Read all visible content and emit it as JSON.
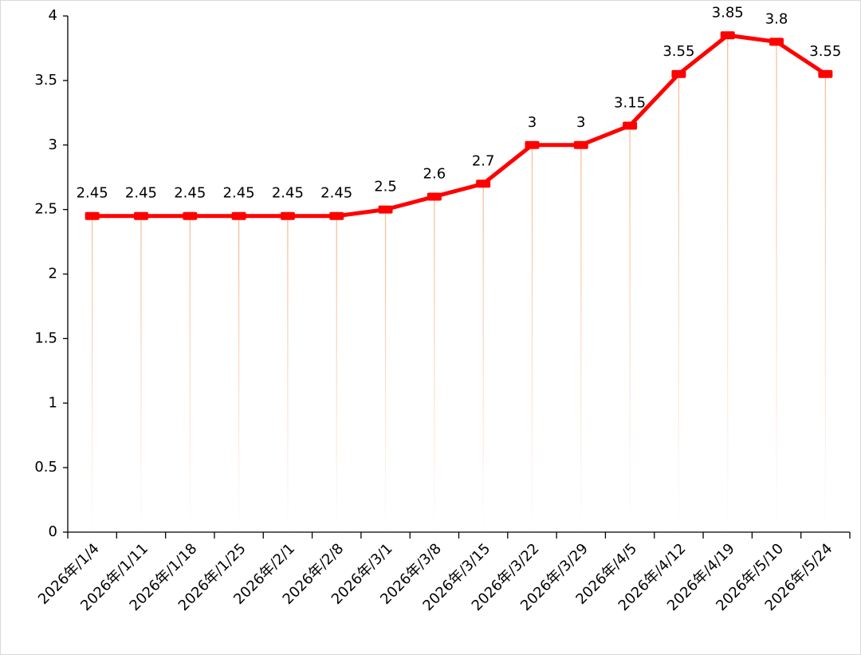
{
  "chart_data": {
    "type": "line",
    "categories": [
      "2026年/1/4",
      "2026年/1/11",
      "2026年/1/18",
      "2026年/1/25",
      "2026年/2/1",
      "2026年/2/8",
      "2026年/3/1",
      "2026年/3/8",
      "2026年/3/15",
      "2026年/3/22",
      "2026年/3/29",
      "2026年/4/5",
      "2026年/4/12",
      "2026年/4/19",
      "2026年/5/10",
      "2026年/5/24"
    ],
    "values": [
      2.45,
      2.45,
      2.45,
      2.45,
      2.45,
      2.45,
      2.5,
      2.6,
      2.7,
      3,
      3,
      3.15,
      3.55,
      3.85,
      3.8,
      3.55
    ],
    "color": "#ff0000",
    "drop_line_color": "#f4b183",
    "ylim": [
      0,
      4
    ],
    "yticks": [
      0,
      0.5,
      1,
      1.5,
      2,
      2.5,
      3,
      3.5,
      4
    ],
    "grid": false
  }
}
